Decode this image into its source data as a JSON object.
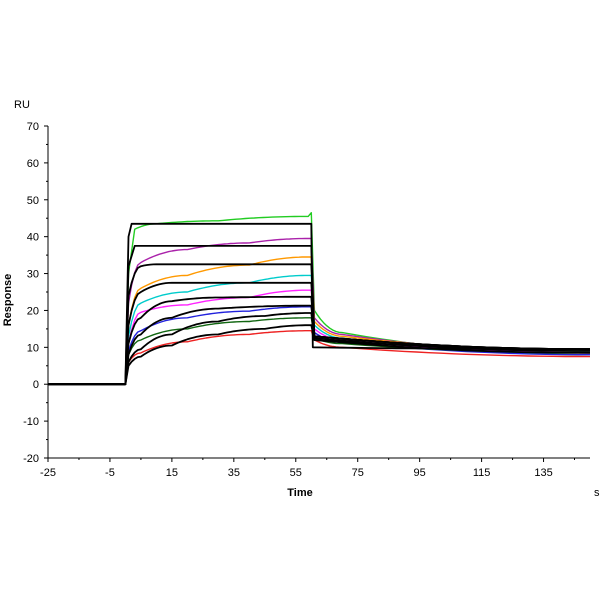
{
  "chart_data": {
    "type": "line",
    "title": "",
    "xlabel": "Time",
    "ylabel": "Response",
    "x_unit": "s",
    "y_unit": "RU",
    "xlim": [
      -25,
      150
    ],
    "ylim": [
      -20,
      70
    ],
    "x_ticks": [
      -25,
      -5,
      15,
      35,
      55,
      75,
      95,
      115,
      135
    ],
    "y_ticks": [
      70,
      60,
      50,
      40,
      30,
      20,
      10,
      0,
      -10,
      -20
    ],
    "grid": false,
    "legend": "none",
    "injection_start": 0,
    "injection_end": 60,
    "series": [
      {
        "color": "#22cc22",
        "plateau_start": 43.0,
        "plateau_end": 45.5,
        "k_on": 1.2,
        "dissociation_start": 12.0,
        "end": 8.0,
        "points": [
          [
            -25,
            0
          ],
          [
            -1,
            0
          ],
          [
            0,
            0
          ],
          [
            1,
            30
          ],
          [
            3,
            42
          ],
          [
            10,
            43.5
          ],
          [
            30,
            44.3
          ],
          [
            59,
            45.5
          ],
          [
            60,
            46.5
          ],
          [
            61,
            20
          ],
          [
            70,
            14
          ],
          [
            150,
            8
          ]
        ]
      },
      {
        "color": "#aa22aa",
        "plateau_start": 35.0,
        "plateau_end": 39.5,
        "k_on": 0.6,
        "points": [
          [
            -25,
            0
          ],
          [
            -1,
            0
          ],
          [
            0,
            0
          ],
          [
            1,
            22
          ],
          [
            5,
            33
          ],
          [
            20,
            36.5
          ],
          [
            40,
            38.3
          ],
          [
            59,
            39.5
          ],
          [
            60,
            39.5
          ],
          [
            61,
            18
          ],
          [
            70,
            13.5
          ],
          [
            150,
            8.5
          ]
        ]
      },
      {
        "color": "#ff9900",
        "plateau_start": 27.0,
        "plateau_end": 34.5,
        "points": [
          [
            -25,
            0
          ],
          [
            -1,
            0
          ],
          [
            0,
            0
          ],
          [
            1,
            16
          ],
          [
            5,
            26
          ],
          [
            20,
            29.5
          ],
          [
            40,
            32.3
          ],
          [
            59,
            34.5
          ],
          [
            60,
            34.5
          ],
          [
            61,
            17
          ],
          [
            70,
            13
          ],
          [
            150,
            9
          ]
        ]
      },
      {
        "color": "#00cccc",
        "plateau_start": 22.5,
        "plateau_end": 29.5,
        "points": [
          [
            -25,
            0
          ],
          [
            -1,
            0
          ],
          [
            0,
            0
          ],
          [
            1,
            13
          ],
          [
            5,
            22
          ],
          [
            20,
            25
          ],
          [
            40,
            27.5
          ],
          [
            59,
            29.5
          ],
          [
            60,
            29.5
          ],
          [
            61,
            16
          ],
          [
            70,
            12.5
          ],
          [
            150,
            9
          ]
        ]
      },
      {
        "color": "#ff22ff",
        "plateau_start": 19.0,
        "plateau_end": 25.5,
        "points": [
          [
            -25,
            0
          ],
          [
            -1,
            0
          ],
          [
            0,
            0
          ],
          [
            1,
            11
          ],
          [
            5,
            19.5
          ],
          [
            20,
            21.5
          ],
          [
            40,
            23.5
          ],
          [
            59,
            25.5
          ],
          [
            60,
            25.5
          ],
          [
            61,
            15
          ],
          [
            70,
            12
          ],
          [
            150,
            8.5
          ]
        ]
      },
      {
        "color": "#2222dd",
        "plateau_start": 14.5,
        "plateau_end": 21.0,
        "points": [
          [
            -25,
            0
          ],
          [
            -1,
            0
          ],
          [
            0,
            0
          ],
          [
            1,
            9
          ],
          [
            5,
            14.5
          ],
          [
            20,
            18
          ],
          [
            40,
            19.8
          ],
          [
            59,
            21.0
          ],
          [
            60,
            21.0
          ],
          [
            61,
            14
          ],
          [
            70,
            11.5
          ],
          [
            150,
            8
          ]
        ]
      },
      {
        "color": "#116611",
        "plateau_start": 12.0,
        "plateau_end": 18.0,
        "points": [
          [
            -25,
            0
          ],
          [
            -1,
            0
          ],
          [
            0,
            0
          ],
          [
            1,
            8
          ],
          [
            5,
            12
          ],
          [
            20,
            15
          ],
          [
            40,
            17
          ],
          [
            59,
            18
          ],
          [
            60,
            18
          ],
          [
            61,
            12.5
          ],
          [
            70,
            11
          ],
          [
            150,
            8.5
          ]
        ]
      },
      {
        "color": "#ee2222",
        "plateau_start": 6.0,
        "plateau_end": 14.5,
        "points": [
          [
            -25,
            0
          ],
          [
            -1,
            0
          ],
          [
            0,
            0
          ],
          [
            1,
            6
          ],
          [
            5,
            8.5
          ],
          [
            20,
            11.5
          ],
          [
            40,
            13.5
          ],
          [
            59,
            14.5
          ],
          [
            60,
            14.5
          ],
          [
            61,
            12
          ],
          [
            70,
            10
          ],
          [
            150,
            7.5
          ]
        ]
      }
    ],
    "fits": [
      {
        "points": [
          [
            -25,
            0
          ],
          [
            -1,
            0
          ],
          [
            0,
            0
          ],
          [
            1,
            40
          ],
          [
            2,
            43.5
          ],
          [
            59,
            43.5
          ],
          [
            60,
            43.5
          ],
          [
            60.5,
            10
          ],
          [
            150,
            9.5
          ]
        ]
      },
      {
        "points": [
          [
            -25,
            0
          ],
          [
            -1,
            0
          ],
          [
            0,
            0
          ],
          [
            1,
            32
          ],
          [
            3,
            37.5
          ],
          [
            59,
            37.5
          ],
          [
            60,
            37.5
          ],
          [
            61,
            12
          ],
          [
            150,
            9.5
          ]
        ]
      },
      {
        "points": [
          [
            -25,
            0
          ],
          [
            -1,
            0
          ],
          [
            0,
            0
          ],
          [
            1,
            24
          ],
          [
            5,
            32
          ],
          [
            10,
            32.5
          ],
          [
            59,
            32.5
          ],
          [
            60,
            32.5
          ],
          [
            61,
            13
          ],
          [
            150,
            9.5
          ]
        ]
      },
      {
        "points": [
          [
            -25,
            0
          ],
          [
            -1,
            0
          ],
          [
            0,
            0
          ],
          [
            1,
            16
          ],
          [
            5,
            25
          ],
          [
            15,
            27.5
          ],
          [
            59,
            27.5
          ],
          [
            60,
            27.5
          ],
          [
            61,
            13
          ],
          [
            150,
            9.5
          ]
        ]
      },
      {
        "points": [
          [
            -25,
            0
          ],
          [
            -1,
            0
          ],
          [
            0,
            0
          ],
          [
            1,
            11
          ],
          [
            5,
            18
          ],
          [
            15,
            22.5
          ],
          [
            30,
            23.5
          ],
          [
            59,
            23.7
          ],
          [
            60,
            23.7
          ],
          [
            61,
            13
          ],
          [
            150,
            9.5
          ]
        ]
      },
      {
        "points": [
          [
            -25,
            0
          ],
          [
            -1,
            0
          ],
          [
            0,
            0
          ],
          [
            1,
            8
          ],
          [
            5,
            13.5
          ],
          [
            15,
            18
          ],
          [
            30,
            20.5
          ],
          [
            59,
            21.3
          ],
          [
            60,
            21.3
          ],
          [
            61,
            13
          ],
          [
            150,
            9.5
          ]
        ]
      },
      {
        "points": [
          [
            -25,
            0
          ],
          [
            -1,
            0
          ],
          [
            0,
            0
          ],
          [
            1,
            6
          ],
          [
            5,
            9.5
          ],
          [
            15,
            13.5
          ],
          [
            30,
            17
          ],
          [
            45,
            18.5
          ],
          [
            59,
            19.3
          ],
          [
            60,
            19.3
          ],
          [
            61,
            12.5
          ],
          [
            150,
            9
          ]
        ]
      },
      {
        "points": [
          [
            -25,
            0
          ],
          [
            -1,
            0
          ],
          [
            0,
            0
          ],
          [
            1,
            5
          ],
          [
            5,
            7.5
          ],
          [
            15,
            10.5
          ],
          [
            30,
            13.5
          ],
          [
            45,
            15
          ],
          [
            59,
            16
          ],
          [
            60,
            16
          ],
          [
            61,
            12
          ],
          [
            150,
            8.5
          ]
        ]
      }
    ]
  }
}
